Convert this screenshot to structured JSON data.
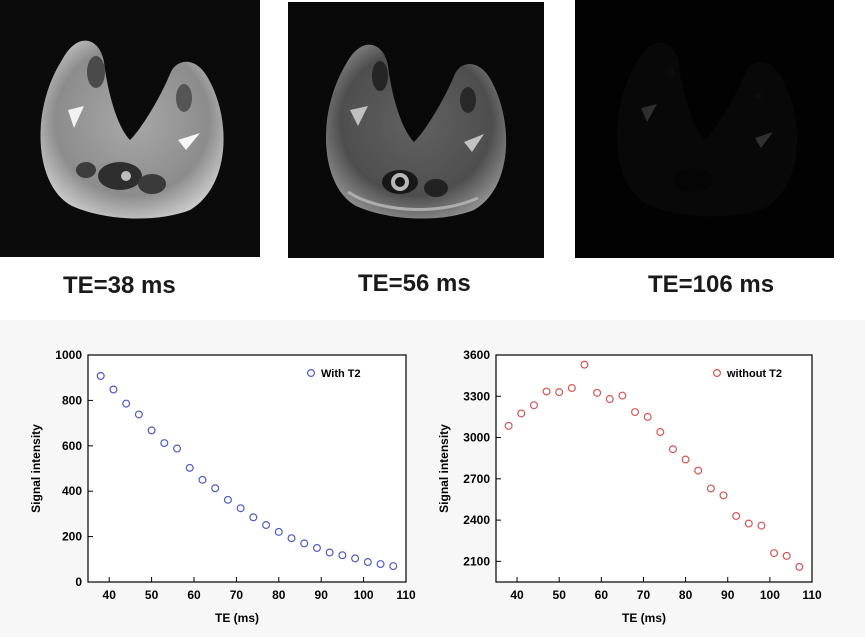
{
  "images": [
    {
      "caption": "TE=38 ms",
      "brightness": 1.0
    },
    {
      "caption": "TE=56 ms",
      "brightness": 0.8
    },
    {
      "caption": "TE=106 ms",
      "brightness": 0.22
    }
  ],
  "chart_data": [
    {
      "type": "scatter",
      "xlabel": "TE (ms)",
      "ylabel": "Signal intensity",
      "xlim": [
        35,
        110
      ],
      "ylim": [
        0,
        1000
      ],
      "xticks": [
        40,
        50,
        60,
        70,
        80,
        90,
        100,
        110
      ],
      "yticks": [
        0,
        200,
        400,
        600,
        800,
        1000
      ],
      "legend_position": "top-right",
      "series": [
        {
          "name": "With T2",
          "color": "#4a5bd6",
          "x": [
            38,
            41,
            44,
            47,
            50,
            53,
            56,
            59,
            62,
            65,
            68,
            71,
            74,
            77,
            80,
            83,
            86,
            89,
            92,
            95,
            98,
            101,
            104,
            107
          ],
          "y": [
            908,
            848,
            786,
            738,
            668,
            612,
            588,
            503,
            450,
            413,
            362,
            325,
            285,
            251,
            221,
            193,
            170,
            150,
            130,
            118,
            104,
            88,
            79,
            70
          ]
        }
      ]
    },
    {
      "type": "scatter",
      "xlabel": "TE (ms)",
      "ylabel": "Signal intensity",
      "xlim": [
        35,
        110
      ],
      "ylim": [
        1950,
        3600
      ],
      "xticks": [
        40,
        50,
        60,
        70,
        80,
        90,
        100,
        110
      ],
      "yticks": [
        2100,
        2400,
        2700,
        3000,
        3300,
        3600
      ],
      "legend_position": "top-right",
      "series": [
        {
          "name": "without T2",
          "color": "#e0524f",
          "x": [
            38,
            41,
            44,
            47,
            50,
            53,
            56,
            59,
            62,
            65,
            68,
            71,
            74,
            77,
            80,
            83,
            86,
            89,
            92,
            95,
            98,
            101,
            104,
            107
          ],
          "y": [
            3085,
            3175,
            3235,
            3335,
            3330,
            3360,
            3530,
            3325,
            3280,
            3305,
            3185,
            3150,
            3040,
            2915,
            2840,
            2760,
            2630,
            2580,
            2430,
            2375,
            2360,
            2160,
            2140,
            2060
          ]
        }
      ]
    }
  ]
}
